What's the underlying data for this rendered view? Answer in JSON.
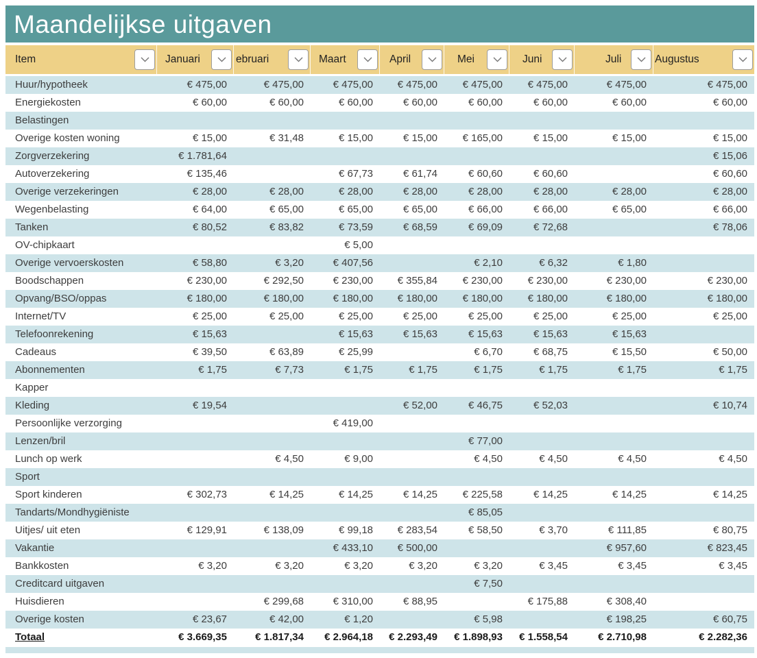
{
  "title": "Maandelijkse uitgaven",
  "colors": {
    "banner_bg": "#5a9a9b",
    "banner_text": "#ffffff",
    "header_bg": "#eed187",
    "row_alt_bg": "#cee4e9",
    "row_bg": "#ffffff",
    "cell_text": "#3d3d3d"
  },
  "table": {
    "filter_icon": "chevron-down-icon",
    "columns": [
      {
        "label": "Item"
      },
      {
        "label": "Januari"
      },
      {
        "label": "ebruari"
      },
      {
        "label": "Maart"
      },
      {
        "label": "April"
      },
      {
        "label": "Mei"
      },
      {
        "label": "Juni"
      },
      {
        "label": "Juli"
      },
      {
        "label": "Augustus"
      }
    ],
    "rows": [
      {
        "item": "Huur/hypotheek",
        "values": [
          "€ 475,00",
          "€ 475,00",
          "€ 475,00",
          "€ 475,00",
          "€ 475,00",
          "€ 475,00",
          "€ 475,00",
          "€ 475,00"
        ]
      },
      {
        "item": "Energiekosten",
        "values": [
          "€ 60,00",
          "€ 60,00",
          "€ 60,00",
          "€ 60,00",
          "€ 60,00",
          "€ 60,00",
          "€ 60,00",
          "€ 60,00"
        ]
      },
      {
        "item": "Belastingen",
        "values": [
          "",
          "",
          "",
          "",
          "",
          "",
          "",
          ""
        ]
      },
      {
        "item": "Overige kosten woning",
        "values": [
          "€ 15,00",
          "€ 31,48",
          "€ 15,00",
          "€ 15,00",
          "€ 165,00",
          "€ 15,00",
          "€ 15,00",
          "€ 15,00"
        ]
      },
      {
        "item": "Zorgverzekering",
        "values": [
          "€ 1.781,64",
          "",
          "",
          "",
          "",
          "",
          "",
          "€ 15,06"
        ]
      },
      {
        "item": "Autoverzekering",
        "values": [
          "€ 135,46",
          "",
          "€ 67,73",
          "€ 61,74",
          "€ 60,60",
          "€ 60,60",
          "",
          "€ 60,60"
        ]
      },
      {
        "item": "Overige verzekeringen",
        "values": [
          "€ 28,00",
          "€ 28,00",
          "€ 28,00",
          "€ 28,00",
          "€ 28,00",
          "€ 28,00",
          "€ 28,00",
          "€ 28,00"
        ]
      },
      {
        "item": "Wegenbelasting",
        "values": [
          "€ 64,00",
          "€ 65,00",
          "€ 65,00",
          "€ 65,00",
          "€ 66,00",
          "€ 66,00",
          "€ 65,00",
          "€ 66,00"
        ]
      },
      {
        "item": "Tanken",
        "values": [
          "€ 80,52",
          "€ 83,82",
          "€ 73,59",
          "€ 68,59",
          "€ 69,09",
          "€ 72,68",
          "",
          "€ 78,06"
        ]
      },
      {
        "item": "OV-chipkaart",
        "values": [
          "",
          "",
          "€ 5,00",
          "",
          "",
          "",
          "",
          ""
        ]
      },
      {
        "item": "Overige vervoerskosten",
        "values": [
          "€ 58,80",
          "€ 3,20",
          "€ 407,56",
          "",
          "€ 2,10",
          "€ 6,32",
          "€ 1,80",
          ""
        ]
      },
      {
        "item": "Boodschappen",
        "values": [
          "€ 230,00",
          "€ 292,50",
          "€ 230,00",
          "€ 355,84",
          "€ 230,00",
          "€ 230,00",
          "€ 230,00",
          "€ 230,00"
        ]
      },
      {
        "item": "Opvang/BSO/oppas",
        "values": [
          "€ 180,00",
          "€ 180,00",
          "€ 180,00",
          "€ 180,00",
          "€ 180,00",
          "€ 180,00",
          "€ 180,00",
          "€ 180,00"
        ]
      },
      {
        "item": "Internet/TV",
        "values": [
          "€ 25,00",
          "€ 25,00",
          "€ 25,00",
          "€ 25,00",
          "€ 25,00",
          "€ 25,00",
          "€ 25,00",
          "€ 25,00"
        ]
      },
      {
        "item": "Telefoonrekening",
        "values": [
          "€ 15,63",
          "",
          "€ 15,63",
          "€ 15,63",
          "€ 15,63",
          "€ 15,63",
          "€ 15,63",
          ""
        ]
      },
      {
        "item": "Cadeaus",
        "values": [
          "€ 39,50",
          "€ 63,89",
          "€ 25,99",
          "",
          "€ 6,70",
          "€ 68,75",
          "€ 15,50",
          "€ 50,00"
        ]
      },
      {
        "item": "Abonnementen",
        "values": [
          "€ 1,75",
          "€ 7,73",
          "€ 1,75",
          "€ 1,75",
          "€ 1,75",
          "€ 1,75",
          "€ 1,75",
          "€ 1,75"
        ]
      },
      {
        "item": "Kapper",
        "values": [
          "",
          "",
          "",
          "",
          "",
          "",
          "",
          ""
        ]
      },
      {
        "item": "Kleding",
        "values": [
          "€ 19,54",
          "",
          "",
          "€ 52,00",
          "€ 46,75",
          "€ 52,03",
          "",
          "€ 10,74"
        ]
      },
      {
        "item": "Persoonlijke verzorging",
        "values": [
          "",
          "",
          "€ 419,00",
          "",
          "",
          "",
          "",
          ""
        ]
      },
      {
        "item": "Lenzen/bril",
        "values": [
          "",
          "",
          "",
          "",
          "€ 77,00",
          "",
          "",
          ""
        ]
      },
      {
        "item": "Lunch op werk",
        "values": [
          "",
          "€ 4,50",
          "€ 9,00",
          "",
          "€ 4,50",
          "€ 4,50",
          "€ 4,50",
          "€ 4,50"
        ]
      },
      {
        "item": "Sport",
        "values": [
          "",
          "",
          "",
          "",
          "",
          "",
          "",
          ""
        ]
      },
      {
        "item": "Sport kinderen",
        "values": [
          "€ 302,73",
          "€ 14,25",
          "€ 14,25",
          "€ 14,25",
          "€ 225,58",
          "€ 14,25",
          "€ 14,25",
          "€ 14,25"
        ]
      },
      {
        "item": "Tandarts/Mondhygiëniste",
        "values": [
          "",
          "",
          "",
          "",
          "€ 85,05",
          "",
          "",
          ""
        ]
      },
      {
        "item": "Uitjes/ uit eten",
        "values": [
          "€ 129,91",
          "€ 138,09",
          "€ 99,18",
          "€ 283,54",
          "€ 58,50",
          "€ 3,70",
          "€ 111,85",
          "€ 80,75"
        ]
      },
      {
        "item": "Vakantie",
        "values": [
          "",
          "",
          "€ 433,10",
          "€ 500,00",
          "",
          "",
          "€ 957,60",
          "€ 823,45"
        ]
      },
      {
        "item": "Bankkosten",
        "values": [
          "€ 3,20",
          "€ 3,20",
          "€ 3,20",
          "€ 3,20",
          "€ 3,20",
          "€ 3,45",
          "€ 3,45",
          "€ 3,45"
        ]
      },
      {
        "item": "Creditcard uitgaven",
        "values": [
          "",
          "",
          "",
          "",
          "€ 7,50",
          "",
          "",
          ""
        ]
      },
      {
        "item": "Huisdieren",
        "values": [
          "",
          "€ 299,68",
          "€ 310,00",
          "€ 88,95",
          "",
          "€ 175,88",
          "€ 308,40",
          ""
        ]
      },
      {
        "item": "Overige kosten",
        "values": [
          "€ 23,67",
          "€ 42,00",
          "€ 1,20",
          "",
          "€ 5,98",
          "",
          "€ 198,25",
          "€ 60,75"
        ]
      }
    ],
    "total": {
      "item": "Totaal",
      "values": [
        "€ 3.669,35",
        "€ 1.817,34",
        "€ 2.964,18",
        "€ 2.293,49",
        "€ 1.898,93",
        "€ 1.558,54",
        "€ 2.710,98",
        "€ 2.282,36"
      ]
    }
  }
}
